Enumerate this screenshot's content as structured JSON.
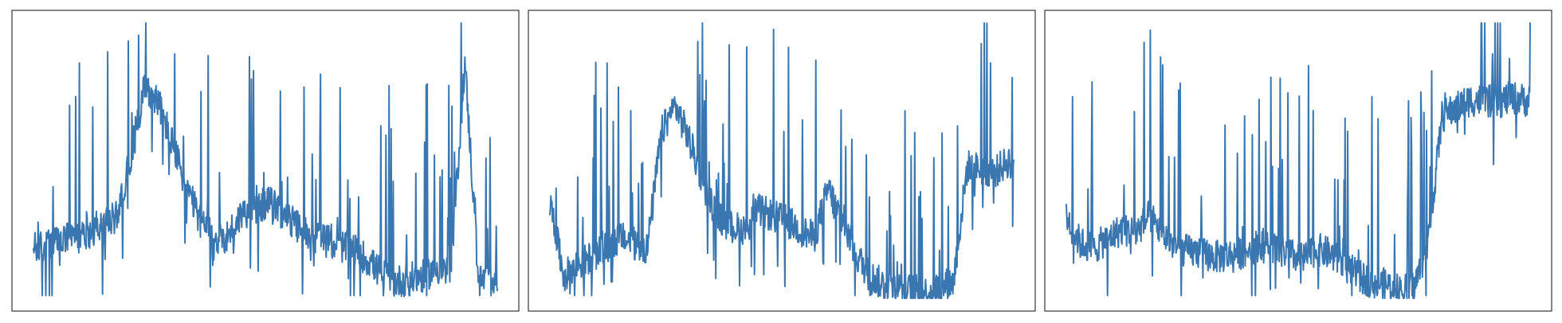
{
  "chart_data": [
    {
      "type": "line",
      "title": "",
      "xlabel": "",
      "ylabel": "",
      "grid": false,
      "xlim": [
        0,
        100
      ],
      "ylim": [
        0,
        100
      ],
      "series": [
        {
          "color": "#3a76b0",
          "x": [
            0,
            3,
            6,
            9,
            12,
            15,
            18,
            21,
            24,
            27,
            30,
            33,
            36,
            39,
            42,
            45,
            48,
            51,
            54,
            57,
            60,
            63,
            66,
            69,
            72,
            75,
            78,
            81,
            84,
            87,
            90,
            93,
            96,
            99,
            100
          ],
          "y": [
            18,
            19,
            21,
            22,
            24,
            26,
            30,
            52,
            78,
            71,
            56,
            40,
            28,
            21,
            23,
            31,
            33,
            35,
            30,
            26,
            23,
            21,
            19,
            18,
            14,
            9,
            6,
            7,
            8,
            11,
            9,
            86,
            6,
            8,
            7
          ]
        }
      ]
    },
    {
      "type": "line",
      "title": "",
      "xlabel": "",
      "ylabel": "",
      "grid": false,
      "xlim": [
        0,
        100
      ],
      "ylim": [
        0,
        100
      ],
      "series": [
        {
          "color": "#3a76b0",
          "x": [
            0,
            3,
            6,
            9,
            12,
            15,
            18,
            21,
            24,
            27,
            30,
            33,
            36,
            39,
            42,
            45,
            48,
            51,
            54,
            57,
            60,
            63,
            66,
            69,
            72,
            75,
            78,
            81,
            84,
            87,
            90,
            93,
            96,
            99,
            100
          ],
          "y": [
            35,
            8,
            12,
            15,
            18,
            22,
            20,
            18,
            60,
            70,
            58,
            42,
            30,
            26,
            25,
            32,
            30,
            28,
            25,
            22,
            40,
            28,
            16,
            8,
            5,
            4,
            3,
            2,
            4,
            6,
            48,
            47,
            46,
            50,
            50
          ]
        }
      ]
    },
    {
      "type": "line",
      "title": "",
      "xlabel": "",
      "ylabel": "",
      "grid": false,
      "xlim": [
        0,
        100
      ],
      "ylim": [
        0,
        100
      ],
      "series": [
        {
          "color": "#3a76b0",
          "x": [
            0,
            3,
            6,
            9,
            12,
            15,
            18,
            21,
            24,
            27,
            30,
            33,
            36,
            39,
            42,
            45,
            48,
            51,
            54,
            57,
            60,
            63,
            66,
            69,
            72,
            75,
            78,
            81,
            84,
            87,
            90,
            93,
            96,
            99,
            100
          ],
          "y": [
            30,
            20,
            18,
            22,
            25,
            24,
            30,
            23,
            18,
            17,
            16,
            15,
            16,
            17,
            20,
            18,
            16,
            14,
            18,
            16,
            12,
            8,
            6,
            5,
            3,
            4,
            20,
            66,
            69,
            72,
            72,
            71,
            73,
            72,
            72
          ]
        }
      ]
    }
  ]
}
